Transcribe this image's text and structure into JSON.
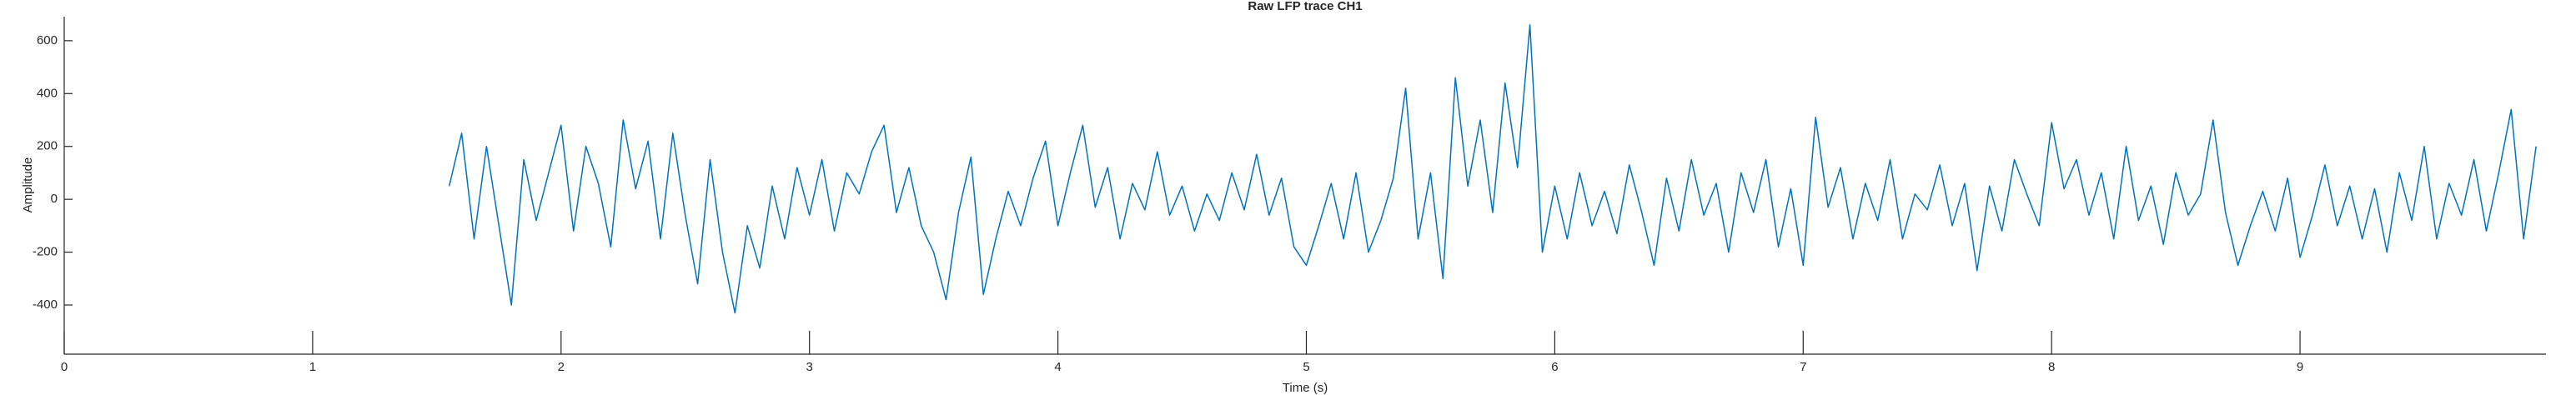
{
  "chart_data": {
    "type": "line",
    "title": "Raw LFP trace CH1",
    "x_label": "Time (s)",
    "y_label": "Amplitude",
    "xlim": [
      0,
      9.99
    ],
    "xticks": [
      0,
      1,
      2,
      3,
      4,
      5,
      6,
      7,
      8,
      9
    ],
    "ylim": [
      -586,
      691
    ],
    "yticks": [
      -400,
      -200,
      0,
      200,
      400,
      600
    ],
    "grid": false,
    "x": [
      1.55,
      1.6,
      1.65,
      1.7,
      1.75,
      1.8,
      1.85,
      1.9,
      1.95,
      2.0,
      2.05,
      2.1,
      2.15,
      2.2,
      2.25,
      2.3,
      2.35,
      2.4,
      2.45,
      2.5,
      2.55,
      2.6,
      2.65,
      2.7,
      2.75,
      2.8,
      2.85,
      2.9,
      2.95,
      3.0,
      3.05,
      3.1,
      3.15,
      3.2,
      3.25,
      3.3,
      3.35,
      3.4,
      3.45,
      3.5,
      3.55,
      3.6,
      3.65,
      3.7,
      3.75,
      3.8,
      3.85,
      3.9,
      3.95,
      4.0,
      4.05,
      4.1,
      4.15,
      4.2,
      4.25,
      4.3,
      4.35,
      4.4,
      4.45,
      4.5,
      4.55,
      4.6,
      4.65,
      4.7,
      4.75,
      4.8,
      4.85,
      4.9,
      4.95,
      5.0,
      5.05,
      5.1,
      5.15,
      5.2,
      5.25,
      5.3,
      5.35,
      5.4,
      5.45,
      5.5,
      5.55,
      5.6,
      5.65,
      5.7,
      5.75,
      5.8,
      5.85,
      5.9,
      5.95,
      6.0,
      6.05,
      6.1,
      6.15,
      6.2,
      6.25,
      6.3,
      6.35,
      6.4,
      6.45,
      6.5,
      6.55,
      6.6,
      6.65,
      6.7,
      6.75,
      6.8,
      6.85,
      6.9,
      6.95,
      7.0,
      7.05,
      7.1,
      7.15,
      7.2,
      7.25,
      7.3,
      7.35,
      7.4,
      7.45,
      7.5,
      7.55,
      7.6,
      7.65,
      7.7,
      7.75,
      7.8,
      7.85,
      7.9,
      7.95,
      8.0,
      8.05,
      8.1,
      8.15,
      8.2,
      8.25,
      8.3,
      8.35,
      8.4,
      8.45,
      8.5,
      8.55,
      8.6,
      8.65,
      8.7,
      8.75,
      8.8,
      8.85,
      8.9,
      8.95,
      9.0,
      9.05,
      9.1,
      9.15,
      9.2,
      9.25,
      9.3,
      9.35,
      9.4,
      9.45,
      9.5,
      9.55,
      9.6,
      9.65,
      9.7,
      9.75,
      9.8,
      9.85,
      9.9,
      9.95
    ],
    "series": [
      {
        "name": "CH1",
        "color": "#0072bd",
        "values": [
          50,
          250,
          -150,
          200,
          -100,
          -400,
          150,
          -80,
          100,
          280,
          -120,
          200,
          60,
          -180,
          300,
          40,
          220,
          -150,
          250,
          -60,
          -320,
          150,
          -200,
          -430,
          -100,
          -260,
          50,
          -150,
          120,
          -60,
          150,
          -120,
          100,
          20,
          180,
          280,
          -50,
          120,
          -100,
          -200,
          -380,
          -50,
          160,
          -360,
          -150,
          30,
          -100,
          80,
          220,
          -100,
          100,
          280,
          -30,
          120,
          -150,
          60,
          -40,
          180,
          -60,
          50,
          -120,
          20,
          -80,
          100,
          -40,
          170,
          -60,
          80,
          -180,
          -250,
          -100,
          60,
          -150,
          100,
          -200,
          -80,
          80,
          420,
          -150,
          100,
          -300,
          460,
          50,
          300,
          -50,
          440,
          120,
          660,
          -200,
          50,
          -150,
          100,
          -100,
          30,
          -130,
          130,
          -50,
          -250,
          80,
          -120,
          150,
          -60,
          60,
          -200,
          100,
          -50,
          150,
          -180,
          40,
          -250,
          310,
          -30,
          120,
          -150,
          60,
          -80,
          150,
          -150,
          20,
          -40,
          130,
          -100,
          60,
          -270,
          50,
          -120,
          150,
          20,
          -100,
          290,
          40,
          150,
          -60,
          100,
          -150,
          200,
          -80,
          50,
          -170,
          100,
          -60,
          20,
          300,
          -50,
          -250,
          -100,
          30,
          -120,
          80,
          -220,
          -60,
          130,
          -100,
          50,
          -150,
          40,
          -200,
          100,
          -80,
          200,
          -150,
          60,
          -60,
          150,
          -120,
          100,
          340,
          -150,
          200
        ]
      }
    ]
  }
}
